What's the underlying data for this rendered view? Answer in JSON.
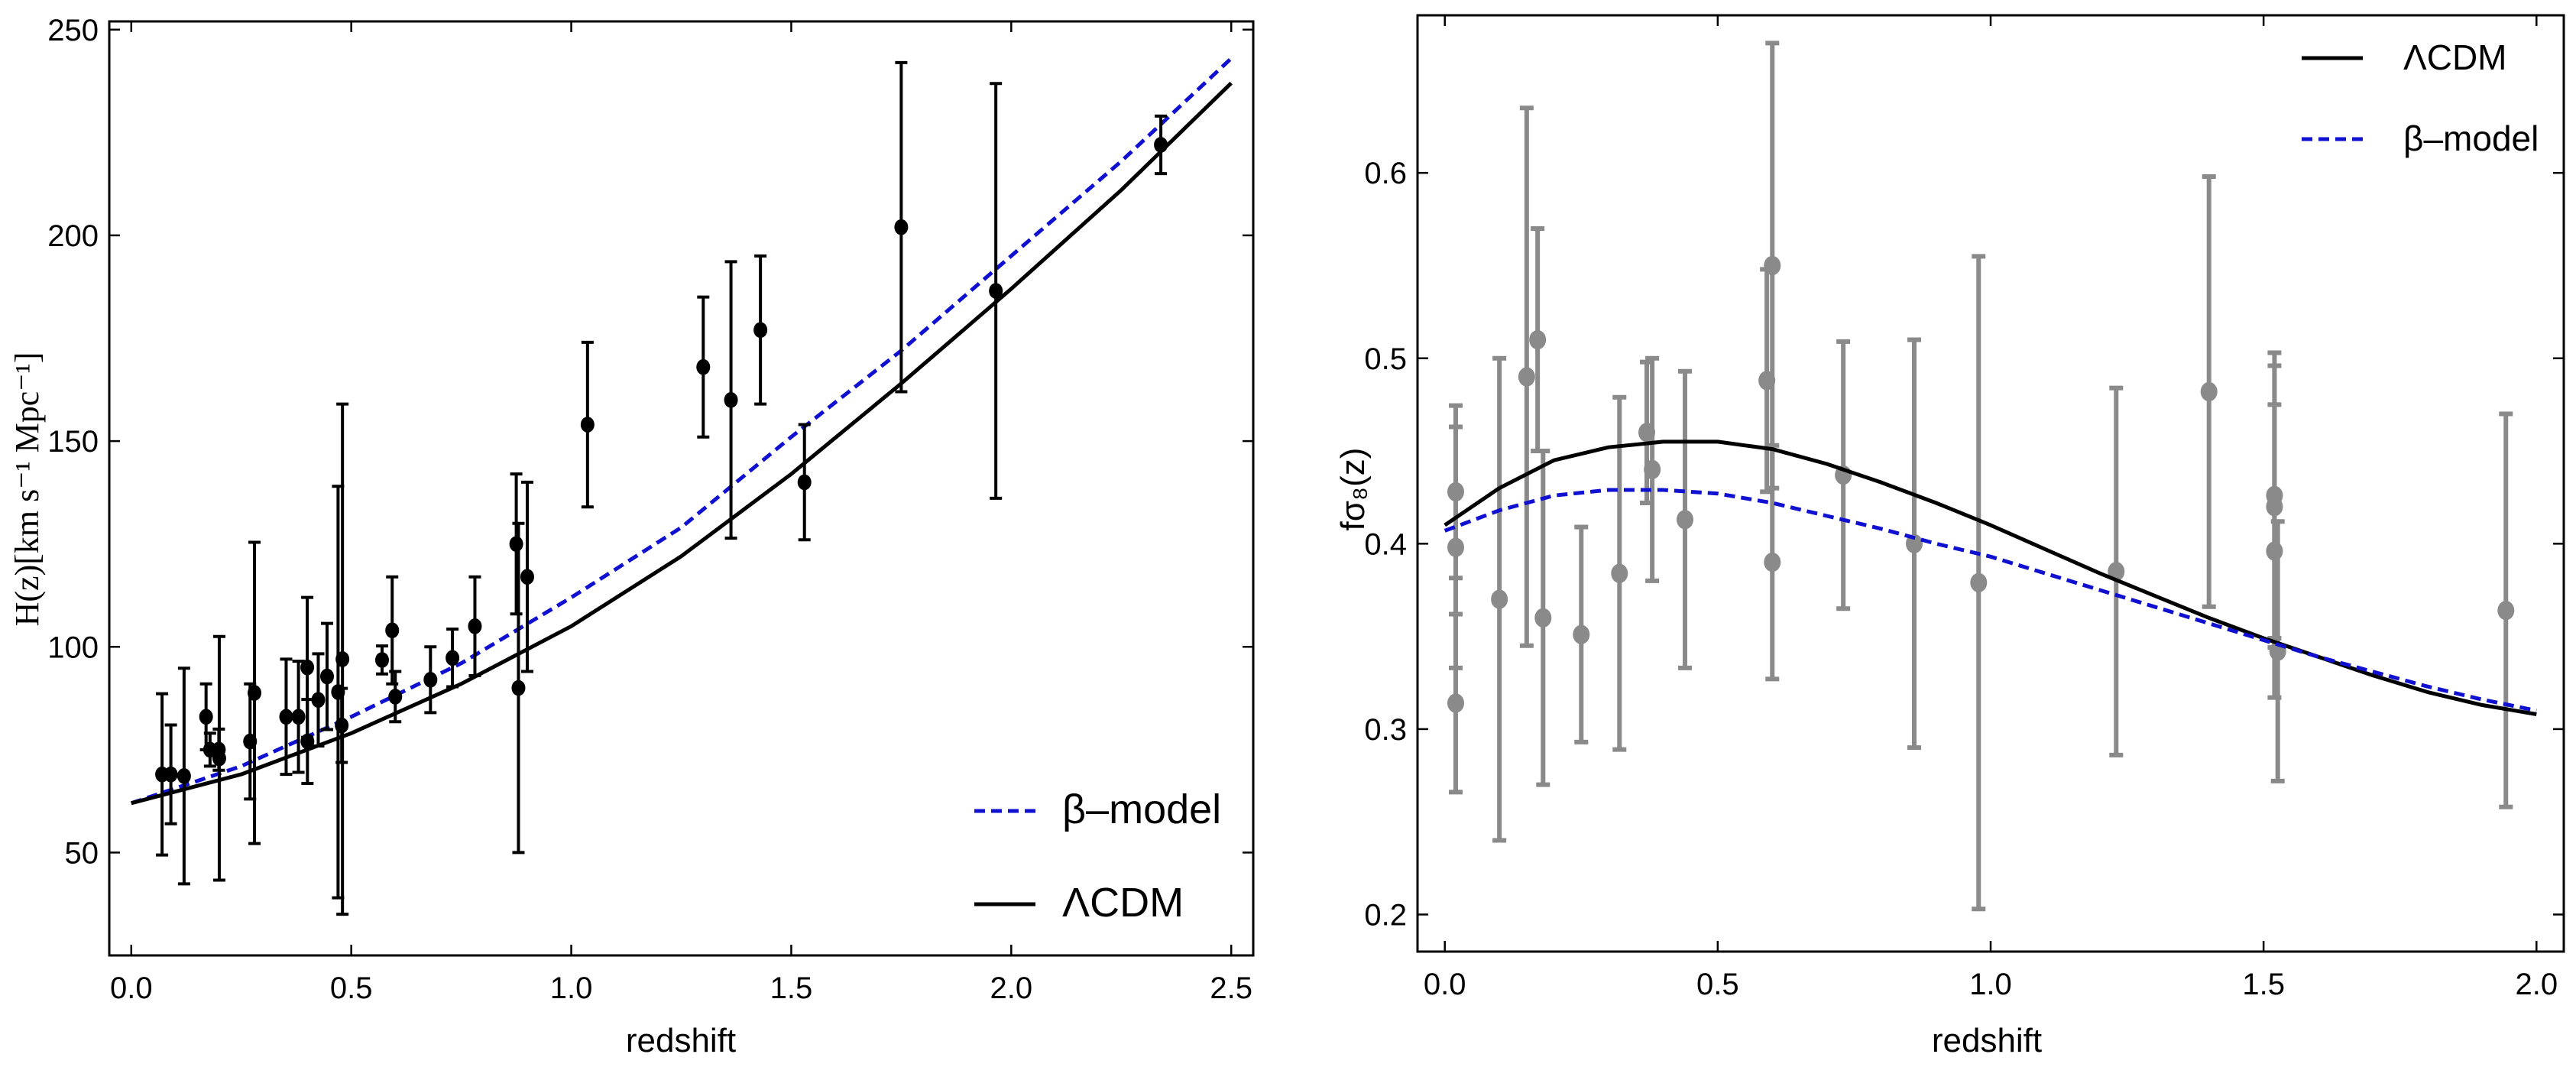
{
  "chart_data": [
    {
      "type": "scatter",
      "panel": "left",
      "xlabel": "redshift",
      "ylabel": "H(z)[km s⁻¹ Mpc⁻¹]",
      "xlim": [
        -0.05,
        2.55
      ],
      "ylim": [
        25,
        252
      ],
      "xticks": [
        "0.0",
        "0.5",
        "1.0",
        "1.5",
        "2.0",
        "2.5"
      ],
      "xtick_values": [
        0,
        0.5,
        1,
        1.5,
        2,
        2.5
      ],
      "yticks": [
        "50",
        "100",
        "150",
        "200",
        "250"
      ],
      "ytick_values": [
        50,
        100,
        150,
        200,
        250
      ],
      "legend": {
        "position": "bottom-right",
        "entries": [
          {
            "label": "β–model",
            "style": "dashed",
            "color": "#1010d0"
          },
          {
            "label": "ΛCDM",
            "style": "solid",
            "color": "#000000"
          }
        ]
      },
      "series": [
        {
          "name": "β–model",
          "color": "#1010d0",
          "style": "dashed",
          "x": [
            0,
            0.25,
            0.5,
            0.75,
            1.0,
            1.25,
            1.5,
            1.75,
            2.0,
            2.25,
            2.5
          ],
          "y": [
            62,
            71,
            83,
            96,
            112,
            129,
            151,
            172,
            195,
            218,
            243
          ]
        },
        {
          "name": "ΛCDM",
          "color": "#000000",
          "style": "solid",
          "x": [
            0,
            0.25,
            0.5,
            0.75,
            1.0,
            1.25,
            1.5,
            1.75,
            2.0,
            2.25,
            2.5
          ],
          "y": [
            62,
            69,
            79,
            91,
            105,
            122,
            142,
            164,
            187,
            211,
            237
          ]
        },
        {
          "name": "H(z) data",
          "color": "#000000",
          "style": "points",
          "points": [
            {
              "x": 0.07,
              "y": 69,
              "err": 19.6
            },
            {
              "x": 0.09,
              "y": 69,
              "err": 12
            },
            {
              "x": 0.12,
              "y": 68.6,
              "err": 26.2
            },
            {
              "x": 0.17,
              "y": 83,
              "err": 8
            },
            {
              "x": 0.179,
              "y": 75,
              "err": 4
            },
            {
              "x": 0.199,
              "y": 75,
              "err": 5
            },
            {
              "x": 0.2,
              "y": 72.9,
              "err": 29.6
            },
            {
              "x": 0.27,
              "y": 77,
              "err": 14
            },
            {
              "x": 0.28,
              "y": 88.8,
              "err": 36.6
            },
            {
              "x": 0.352,
              "y": 83,
              "err": 14
            },
            {
              "x": 0.38,
              "y": 83,
              "err": 13.5
            },
            {
              "x": 0.4,
              "y": 95,
              "err": 17
            },
            {
              "x": 0.4004,
              "y": 77,
              "err": 10.2
            },
            {
              "x": 0.425,
              "y": 87.1,
              "err": 11.2
            },
            {
              "x": 0.445,
              "y": 92.8,
              "err": 12.9
            },
            {
              "x": 0.47,
              "y": 89,
              "err": 50
            },
            {
              "x": 0.4783,
              "y": 80.9,
              "err": 9
            },
            {
              "x": 0.48,
              "y": 97,
              "err": 62
            },
            {
              "x": 0.57,
              "y": 96.8,
              "err": 3.4
            },
            {
              "x": 0.593,
              "y": 104,
              "err": 13
            },
            {
              "x": 0.6,
              "y": 87.9,
              "err": 6.1
            },
            {
              "x": 0.68,
              "y": 92,
              "err": 8
            },
            {
              "x": 0.73,
              "y": 97.3,
              "err": 7
            },
            {
              "x": 0.781,
              "y": 105,
              "err": 12
            },
            {
              "x": 0.875,
              "y": 125,
              "err": 17
            },
            {
              "x": 0.88,
              "y": 90,
              "err": 40
            },
            {
              "x": 0.9,
              "y": 117,
              "err": 23
            },
            {
              "x": 1.037,
              "y": 154,
              "err": 20
            },
            {
              "x": 1.3,
              "y": 168,
              "err": 17
            },
            {
              "x": 1.363,
              "y": 160,
              "err": 33.6
            },
            {
              "x": 1.43,
              "y": 177,
              "err": 18
            },
            {
              "x": 1.53,
              "y": 140,
              "err": 14
            },
            {
              "x": 1.75,
              "y": 202,
              "err": 40
            },
            {
              "x": 1.965,
              "y": 186.5,
              "err": 50.4
            },
            {
              "x": 2.34,
              "y": 222,
              "err": 7
            }
          ]
        }
      ]
    },
    {
      "type": "scatter",
      "panel": "right",
      "xlabel": "redshift",
      "ylabel": "fσ₈(z)",
      "xlim": [
        -0.05,
        2.05
      ],
      "ylim": [
        0.18,
        0.685
      ],
      "xticks": [
        "0.0",
        "0.5",
        "1.0",
        "1.5",
        "2.0"
      ],
      "xtick_values": [
        0,
        0.5,
        1,
        1.5,
        2
      ],
      "yticks": [
        "0.2",
        "0.3",
        "0.4",
        "0.5",
        "0.6"
      ],
      "ytick_values": [
        0.2,
        0.3,
        0.4,
        0.5,
        0.6
      ],
      "legend": {
        "position": "top-right",
        "entries": [
          {
            "label": "ΛCDM",
            "style": "solid",
            "color": "#000000"
          },
          {
            "label": "β–model",
            "style": "dashed",
            "color": "#1010d0"
          }
        ]
      },
      "series": [
        {
          "name": "ΛCDM",
          "color": "#000000",
          "style": "solid",
          "x": [
            0,
            0.1,
            0.2,
            0.3,
            0.4,
            0.5,
            0.6,
            0.7,
            0.8,
            0.9,
            1.0,
            1.1,
            1.2,
            1.3,
            1.4,
            1.5,
            1.6,
            1.7,
            1.8,
            1.9,
            2.0
          ],
          "y": [
            0.41,
            0.43,
            0.445,
            0.452,
            0.455,
            0.455,
            0.451,
            0.443,
            0.433,
            0.422,
            0.41,
            0.397,
            0.384,
            0.372,
            0.36,
            0.349,
            0.339,
            0.329,
            0.32,
            0.313,
            0.308
          ]
        },
        {
          "name": "β–model",
          "color": "#1010d0",
          "style": "dashed",
          "x": [
            0,
            0.1,
            0.2,
            0.3,
            0.4,
            0.5,
            0.6,
            0.7,
            0.8,
            0.9,
            1.0,
            1.1,
            1.2,
            1.3,
            1.4,
            1.5,
            1.6,
            1.7,
            1.8,
            1.9,
            2.0
          ],
          "y": [
            0.407,
            0.418,
            0.426,
            0.429,
            0.429,
            0.427,
            0.422,
            0.415,
            0.408,
            0.4,
            0.393,
            0.384,
            0.375,
            0.366,
            0.357,
            0.348,
            0.339,
            0.331,
            0.323,
            0.316,
            0.31
          ]
        },
        {
          "name": "fσ₈ data",
          "color": "#8a8a8a",
          "style": "points",
          "points": [
            {
              "x": 0.02,
              "y": 0.428,
              "err": 0.0465
            },
            {
              "x": 0.02,
              "y": 0.398,
              "err": 0.065
            },
            {
              "x": 0.02,
              "y": 0.314,
              "err": 0.048
            },
            {
              "x": 0.1,
              "y": 0.37,
              "err": 0.13
            },
            {
              "x": 0.15,
              "y": 0.49,
              "err": 0.145
            },
            {
              "x": 0.17,
              "y": 0.51,
              "err": 0.06
            },
            {
              "x": 0.18,
              "y": 0.36,
              "err": 0.09
            },
            {
              "x": 0.25,
              "y": 0.351,
              "err": 0.058
            },
            {
              "x": 0.32,
              "y": 0.384,
              "err": 0.095
            },
            {
              "x": 0.37,
              "y": 0.46,
              "err": 0.038
            },
            {
              "x": 0.38,
              "y": 0.44,
              "err": 0.06
            },
            {
              "x": 0.44,
              "y": 0.413,
              "err": 0.08
            },
            {
              "x": 0.59,
              "y": 0.488,
              "err": 0.06
            },
            {
              "x": 0.6,
              "y": 0.39,
              "err": 0.063
            },
            {
              "x": 0.6,
              "y": 0.55,
              "err": 0.12
            },
            {
              "x": 0.73,
              "y": 0.437,
              "err": 0.072
            },
            {
              "x": 0.86,
              "y": 0.4,
              "err": 0.11
            },
            {
              "x": 0.978,
              "y": 0.379,
              "err": 0.176
            },
            {
              "x": 1.23,
              "y": 0.385,
              "err": 0.099
            },
            {
              "x": 1.4,
              "y": 0.482,
              "err": 0.116
            },
            {
              "x": 1.52,
              "y": 0.426,
              "err": 0.077
            },
            {
              "x": 1.52,
              "y": 0.42,
              "err": 0.076
            },
            {
              "x": 1.526,
              "y": 0.342,
              "err": 0.07
            },
            {
              "x": 1.52,
              "y": 0.396,
              "err": 0.079
            },
            {
              "x": 1.944,
              "y": 0.364,
              "err": 0.106
            }
          ]
        }
      ]
    }
  ]
}
